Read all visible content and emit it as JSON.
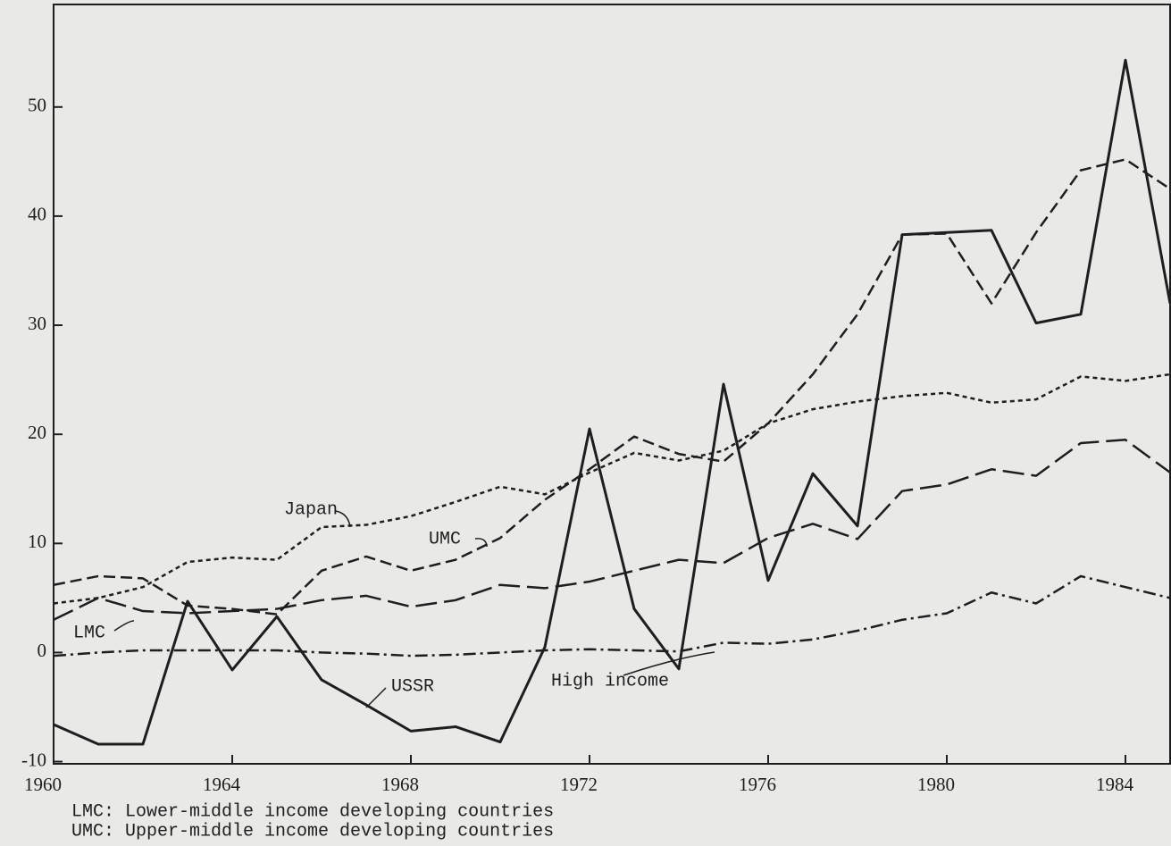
{
  "chart_data": {
    "type": "line",
    "x": [
      1960,
      1961,
      1962,
      1963,
      1964,
      1965,
      1966,
      1967,
      1968,
      1969,
      1970,
      1971,
      1972,
      1973,
      1974,
      1975,
      1976,
      1977,
      1978,
      1979,
      1980,
      1981,
      1982,
      1983,
      1984,
      1985
    ],
    "series": [
      {
        "name": "USSR",
        "color": "#1e1e1e",
        "values": [
          -6.6,
          -8.4,
          -8.4,
          4.7,
          -1.6,
          3.3,
          -2.5,
          -4.8,
          -7.2,
          -6.8,
          -8.2,
          0.5,
          20.5,
          4.0,
          -1.5,
          24.6,
          6.6,
          16.4,
          11.6,
          38.3,
          38.5,
          38.7,
          30.2,
          31.0,
          54.3,
          32.0
        ]
      },
      {
        "name": "High income",
        "color": "#1e1e1e",
        "values": [
          -0.3,
          0,
          0.2,
          0.2,
          0.2,
          0.2,
          0,
          -0.1,
          -0.3,
          -0.2,
          0,
          0.2,
          0.3,
          0.2,
          0.1,
          0.9,
          0.8,
          1.2,
          2.0,
          3.0,
          3.6,
          5.5,
          4.5,
          7.0,
          6.0,
          5.0
        ]
      },
      {
        "name": "Japan",
        "color": "#1e1e1e",
        "values": [
          4.5,
          5.0,
          6.0,
          8.3,
          8.7,
          8.5,
          11.5,
          11.7,
          12.5,
          13.8,
          15.2,
          14.5,
          16.5,
          18.3,
          17.6,
          18.5,
          21.0,
          22.3,
          23.0,
          23.5,
          23.8,
          22.9,
          23.2,
          25.3,
          24.9,
          25.5
        ]
      },
      {
        "name": "UMC",
        "color": "#1e1e1e",
        "values": [
          6.2,
          7.0,
          6.8,
          4.3,
          4.0,
          3.5,
          7.5,
          8.8,
          7.5,
          8.5,
          10.5,
          14.0,
          16.8,
          19.8,
          18.2,
          17.5,
          21.0,
          25.5,
          31.0,
          38.3,
          38.4,
          32.0,
          38.5,
          44.2,
          45.2,
          42.5
        ]
      },
      {
        "name": "LMC",
        "color": "#1e1e1e",
        "values": [
          3.0,
          5.0,
          3.8,
          3.6,
          3.8,
          4.0,
          4.8,
          5.2,
          4.2,
          4.8,
          6.2,
          5.9,
          6.5,
          7.5,
          8.5,
          8.2,
          10.5,
          11.8,
          10.4,
          14.8,
          15.4,
          16.8,
          16.2,
          19.2,
          19.5,
          16.5
        ]
      }
    ],
    "xlim": [
      1960,
      1985
    ],
    "xticks": [
      1960,
      1964,
      1968,
      1972,
      1976,
      1980,
      1984
    ],
    "ylim": [
      -10.2,
      59.4
    ],
    "yticks": [
      -10,
      0,
      10,
      20,
      30,
      40,
      50
    ],
    "notes": [
      "LMC: Lower-middle income developing countries",
      "UMC: Upper-middle income developing countries"
    ]
  }
}
